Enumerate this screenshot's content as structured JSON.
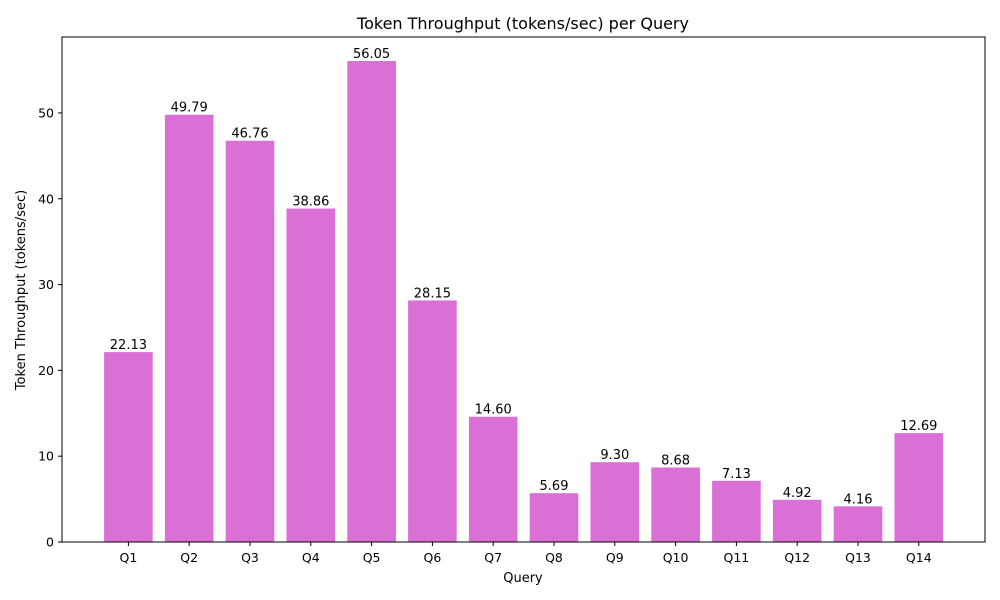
{
  "chart_data": {
    "type": "bar",
    "title": "Token Throughput (tokens/sec) per Query",
    "xlabel": "Query",
    "ylabel": "Token Throughput (tokens/sec)",
    "categories": [
      "Q1",
      "Q2",
      "Q3",
      "Q4",
      "Q5",
      "Q6",
      "Q7",
      "Q8",
      "Q9",
      "Q10",
      "Q11",
      "Q12",
      "Q13",
      "Q14"
    ],
    "values": [
      22.13,
      49.79,
      46.76,
      38.86,
      56.05,
      28.15,
      14.6,
      5.69,
      9.3,
      8.68,
      7.13,
      4.92,
      4.16,
      12.69
    ],
    "data_labels": [
      "22.13",
      "49.79",
      "46.76",
      "38.86",
      "56.05",
      "28.15",
      "14.60",
      "5.69",
      "9.30",
      "8.68",
      "7.13",
      "4.92",
      "4.16",
      "12.69"
    ],
    "ylim": [
      0,
      58.85
    ],
    "yticks": [
      0,
      10,
      20,
      30,
      40,
      50
    ],
    "bar_color": "#da70d6",
    "grid": false,
    "legend": "none"
  }
}
